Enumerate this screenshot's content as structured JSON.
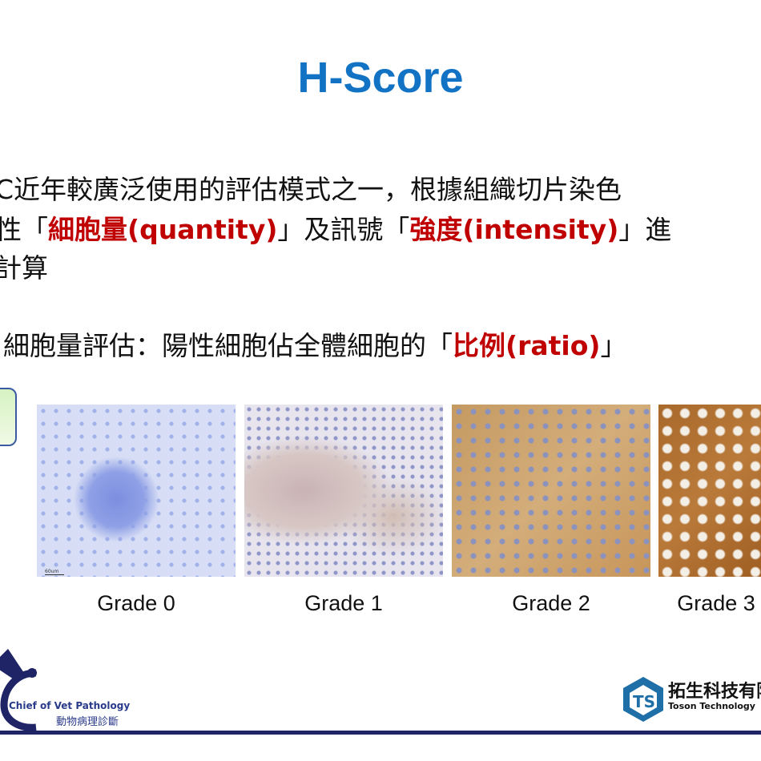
{
  "slide": {
    "title": "H-Score",
    "line1": "C近年較廣泛使用的評估模式之一，根據組織切片染色",
    "line2_pre": "性「",
    "line2_red1": "細胞量(quantity)",
    "line2_mid": "」及訊號「",
    "line2_red2": "強度(intensity)",
    "line2_post": "」進",
    "line3": "計算",
    "line4_pre": "細胞量評估：陽性細胞佔全體細胞的「",
    "line4_red": "比例(ratio)",
    "line4_post": "」"
  },
  "panels": [
    {
      "caption": "Grade 0",
      "scale_label": "60um"
    },
    {
      "caption": "Grade 1"
    },
    {
      "caption": "Grade 2"
    },
    {
      "caption": "Grade 3"
    }
  ],
  "footer": {
    "left_logo_en": "Chief of Vet Pathology",
    "left_logo_zh": "動物病理診斷",
    "right_logo_zh": "拓生科技有限",
    "right_logo_en": "Toson Technology"
  },
  "colors": {
    "title": "#1273c4",
    "highlight": "#c00000",
    "footer_bar": "#1e2466"
  }
}
